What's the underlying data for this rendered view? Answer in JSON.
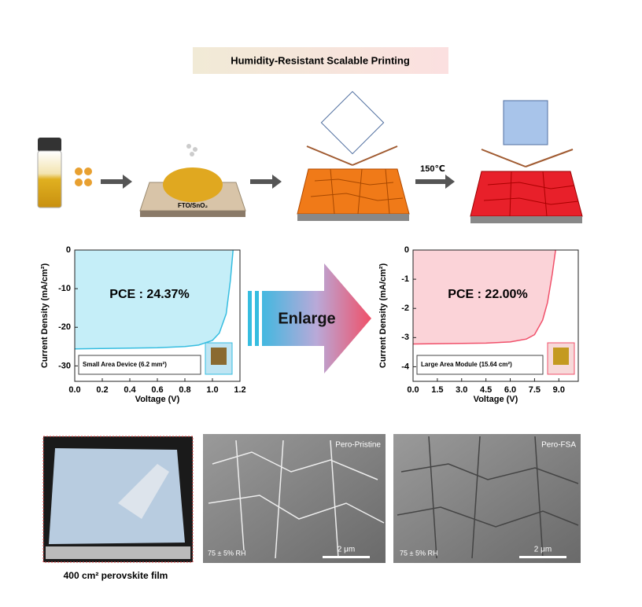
{
  "header": {
    "title": "Humidity-Resistant Scalable Printing"
  },
  "process": {
    "substrate_label": "FTO/SnO₂",
    "anneal_label": "150℃"
  },
  "arrow_label": "Enlarge",
  "chart_data": [
    {
      "type": "line",
      "x_label": "Voltage (V)",
      "y_label": "Current Density (mA/cm²)",
      "annotation": "PCE : 24.37%",
      "inset_label": "Small Area Device (6.2 mm²)",
      "x": [
        0,
        0.2,
        0.4,
        0.6,
        0.8,
        0.9,
        1.0,
        1.05,
        1.1,
        1.13,
        1.15
      ],
      "values": [
        -25.6,
        -25.5,
        -25.4,
        -25.3,
        -25.0,
        -24.6,
        -23.4,
        -21.5,
        -16.5,
        -8,
        0
      ],
      "color": "#36bde0",
      "fill": "#c5eef8",
      "xlim": [
        0,
        1.2
      ],
      "xticks": [
        {
          "value": 0,
          "label": "0.0"
        },
        0.2,
        0.4,
        0.6,
        0.8,
        {
          "value": 1,
          "label": "1.0"
        },
        1.2
      ],
      "ylim": [
        -34,
        0
      ],
      "yticks": [
        0,
        -10,
        -20,
        -30
      ]
    },
    {
      "type": "line",
      "x_label": "Voltage (V)",
      "y_label": "Current Density (mA/cm²)",
      "annotation": "PCE : 22.00%",
      "inset_label": "Large Area Module (15.64 cm²)",
      "x": [
        0,
        1.5,
        3,
        4.5,
        6,
        7,
        7.5,
        8,
        8.3,
        8.6,
        8.8
      ],
      "values": [
        -3.22,
        -3.21,
        -3.2,
        -3.19,
        -3.15,
        -3.05,
        -2.9,
        -2.4,
        -1.8,
        -0.8,
        0
      ],
      "color": "#f0506a",
      "fill": "#fbd3d8",
      "xlim": [
        0,
        10.2
      ],
      "xticks": [
        {
          "value": 0,
          "label": "0.0"
        },
        1.5,
        {
          "value": 3,
          "label": "3.0"
        },
        4.5,
        {
          "value": 6,
          "label": "6.0"
        },
        7.5,
        {
          "value": 9,
          "label": "9.0"
        }
      ],
      "ylim": [
        -4.5,
        0
      ],
      "yticks": [
        0,
        -1,
        -2,
        -3,
        -4
      ]
    }
  ],
  "photos": {
    "film_caption": "400 cm² perovskite film",
    "sem": [
      {
        "label": "Pero-Pristine",
        "humidity": "75 ± 5% RH",
        "scale": "2 μm"
      },
      {
        "label": "Pero-FSA",
        "humidity": "75 ± 5% RH",
        "scale": "2 μm"
      }
    ]
  }
}
